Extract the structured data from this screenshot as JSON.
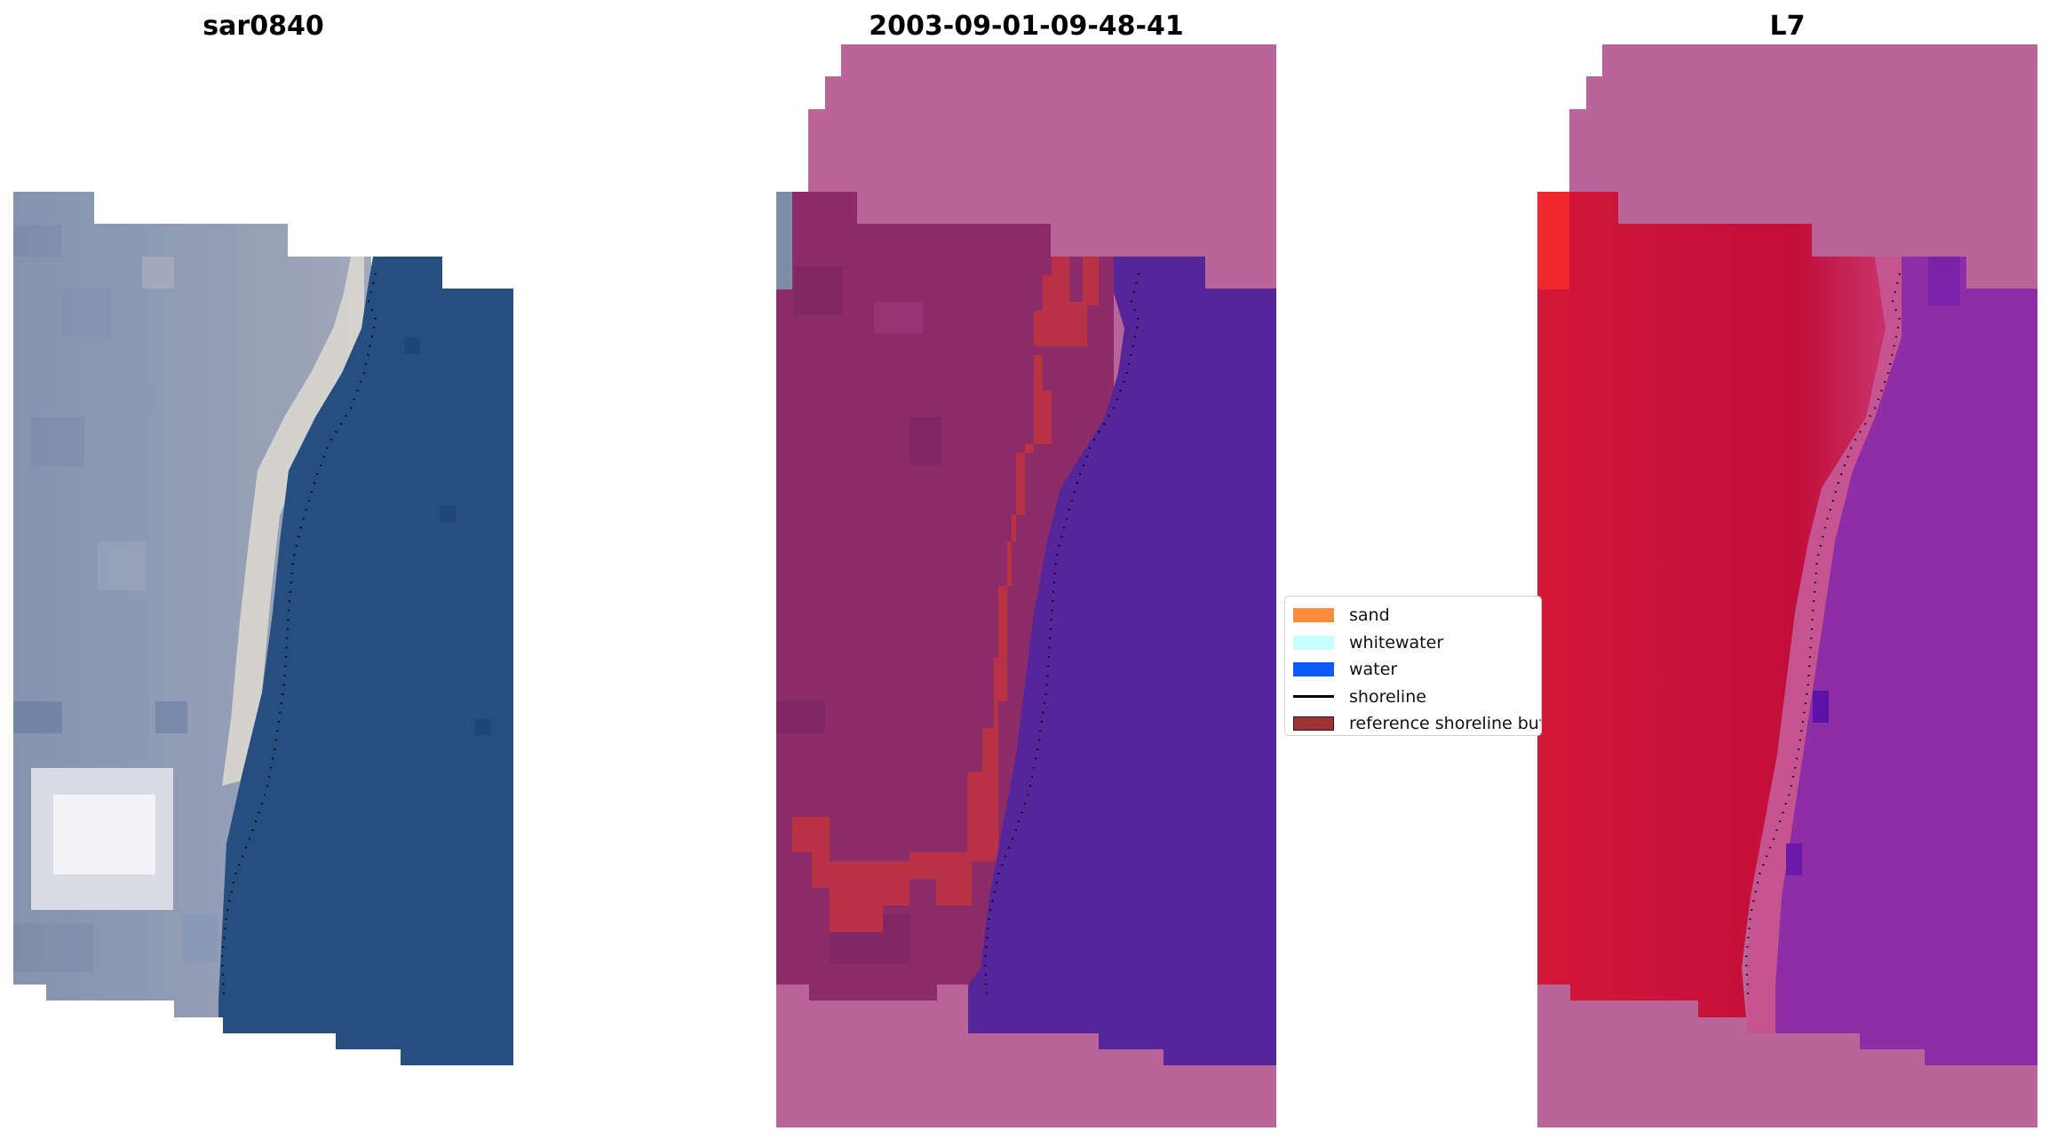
{
  "panels": [
    {
      "title": "sar0840"
    },
    {
      "title": "2003-09-01-09-48-41"
    },
    {
      "title": "L7"
    }
  ],
  "legend": {
    "items": [
      {
        "label": "sand",
        "color": "#ff8c3c",
        "kind": "patch"
      },
      {
        "label": "whitewater",
        "color": "#c8ffff",
        "kind": "patch"
      },
      {
        "label": "water",
        "color": "#0a5aff",
        "kind": "patch"
      },
      {
        "label": "shoreline",
        "color": "#000000",
        "kind": "line"
      },
      {
        "label": "reference shoreline buffer",
        "color": "#9a3238",
        "kind": "patch"
      }
    ]
  },
  "colors": {
    "land_rgb": "#8a98b4",
    "water_rgb": "#264f80",
    "nodata_overlay": "#b9659a",
    "land_class": "#8c2d6a",
    "water_class": "#55259a",
    "sand_class": "#b93245",
    "land_index": "#c20e3a",
    "water_index": "#8e2ea6"
  }
}
